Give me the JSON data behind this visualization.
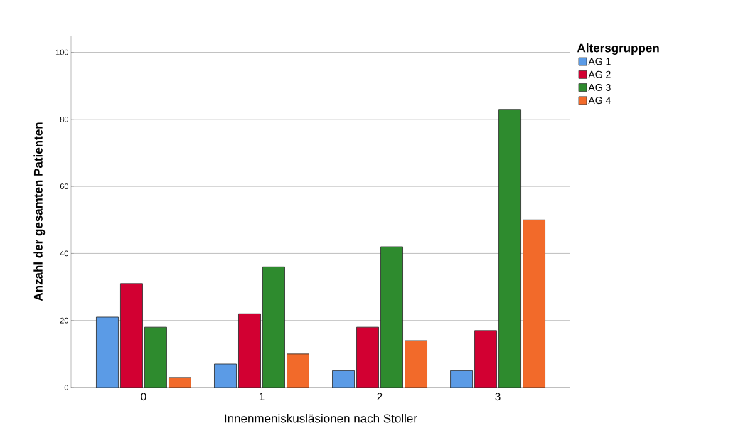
{
  "chart_data": {
    "type": "bar",
    "xlabel": "Innenmeniskusläsionen nach Stoller",
    "ylabel": "Anzahl der gesamten Patienten",
    "legend_title": "Altersgruppen",
    "categories": [
      "0",
      "1",
      "2",
      "3"
    ],
    "series": [
      {
        "name": "AG 1",
        "color": "#5b9be6",
        "values": [
          21,
          7,
          5,
          5
        ]
      },
      {
        "name": "AG 2",
        "color": "#d20032",
        "values": [
          31,
          22,
          18,
          17
        ]
      },
      {
        "name": "AG 3",
        "color": "#2e8b2e",
        "values": [
          18,
          36,
          42,
          83
        ]
      },
      {
        "name": "AG 4",
        "color": "#f26a2a",
        "values": [
          3,
          10,
          14,
          50
        ]
      }
    ],
    "ylim": [
      0,
      105
    ],
    "yticks": [
      0,
      20,
      40,
      60,
      80,
      100
    ],
    "grid": "y",
    "legend": "right"
  }
}
